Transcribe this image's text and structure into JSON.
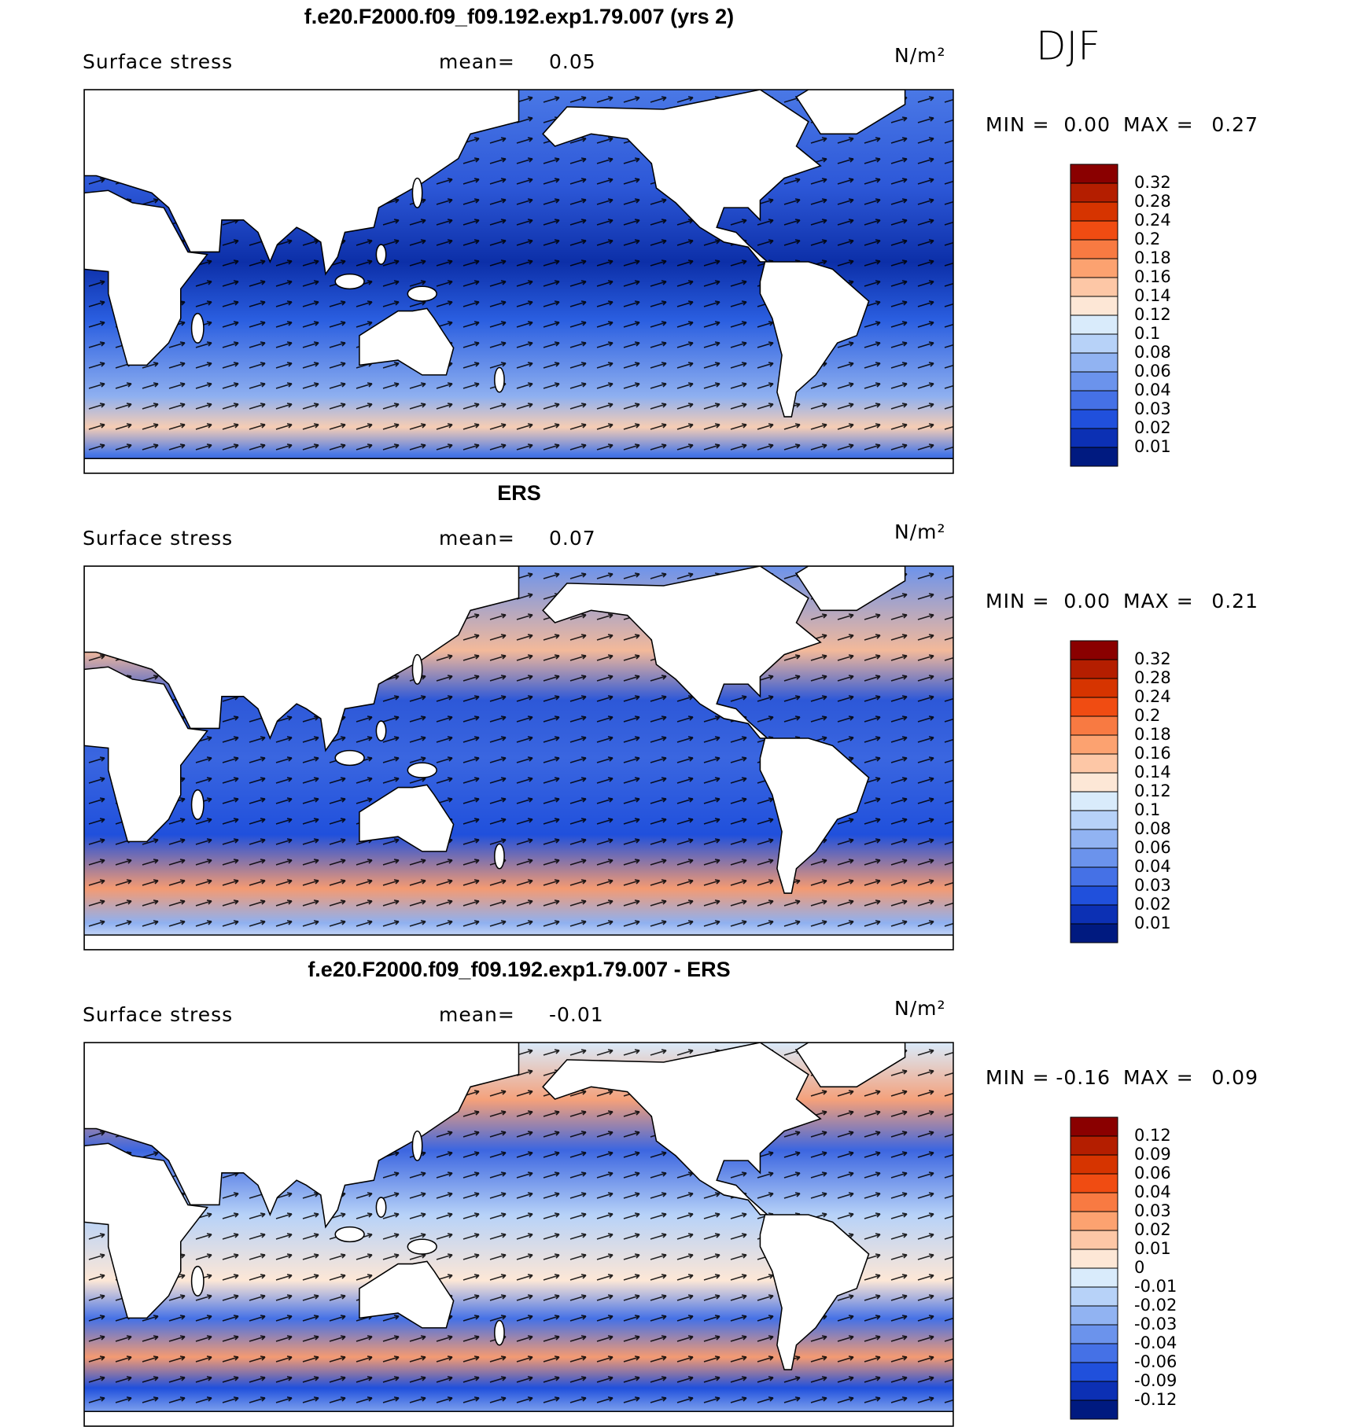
{
  "season": "DJF",
  "colorbar_colors": [
    "#8a0000",
    "#b41e00",
    "#d63400",
    "#f04c12",
    "#f87a42",
    "#fca270",
    "#fdc7a6",
    "#fde7d6",
    "#d9ebfb",
    "#b7d2f8",
    "#91b3f2",
    "#6b93ec",
    "#4571e6",
    "#2050dc",
    "#0c30b4",
    "#001a80"
  ],
  "panels": [
    {
      "title": "f.e20.F2000.f09_f09.192.exp1.79.007 (yrs 2)",
      "variable": "Surface stress",
      "mean_label": "mean=",
      "mean": "0.05",
      "units": "N/m²",
      "min_label": "MIN =",
      "min": "0.00",
      "max_label": "MAX =",
      "max": "0.27",
      "colorbar": [
        "0.32",
        "0.28",
        "0.24",
        "0.2",
        "0.18",
        "0.16",
        "0.14",
        "0.12",
        "0.1",
        "0.08",
        "0.06",
        "0.04",
        "0.03",
        "0.02",
        "0.01"
      ]
    },
    {
      "title": "ERS",
      "variable": "Surface stress",
      "mean_label": "mean=",
      "mean": "0.07",
      "units": "N/m²",
      "min_label": "MIN =",
      "min": "0.00",
      "max_label": "MAX =",
      "max": "0.21",
      "colorbar": [
        "0.32",
        "0.28",
        "0.24",
        "0.2",
        "0.18",
        "0.16",
        "0.14",
        "0.12",
        "0.1",
        "0.08",
        "0.06",
        "0.04",
        "0.03",
        "0.02",
        "0.01"
      ]
    },
    {
      "title": "f.e20.F2000.f09_f09.192.exp1.79.007 - ERS",
      "variable": "Surface stress",
      "mean_label": "mean=",
      "mean": "-0.01",
      "units": "N/m²",
      "min_label": "MIN =",
      "min": "-0.16",
      "max_label": "MAX =",
      "max": "0.09",
      "colorbar": [
        "0.12",
        "0.09",
        "0.06",
        "0.04",
        "0.03",
        "0.02",
        "0.01",
        "0",
        "-0.01",
        "-0.02",
        "-0.03",
        "-0.04",
        "-0.06",
        "-0.09",
        "-0.12"
      ]
    }
  ]
}
